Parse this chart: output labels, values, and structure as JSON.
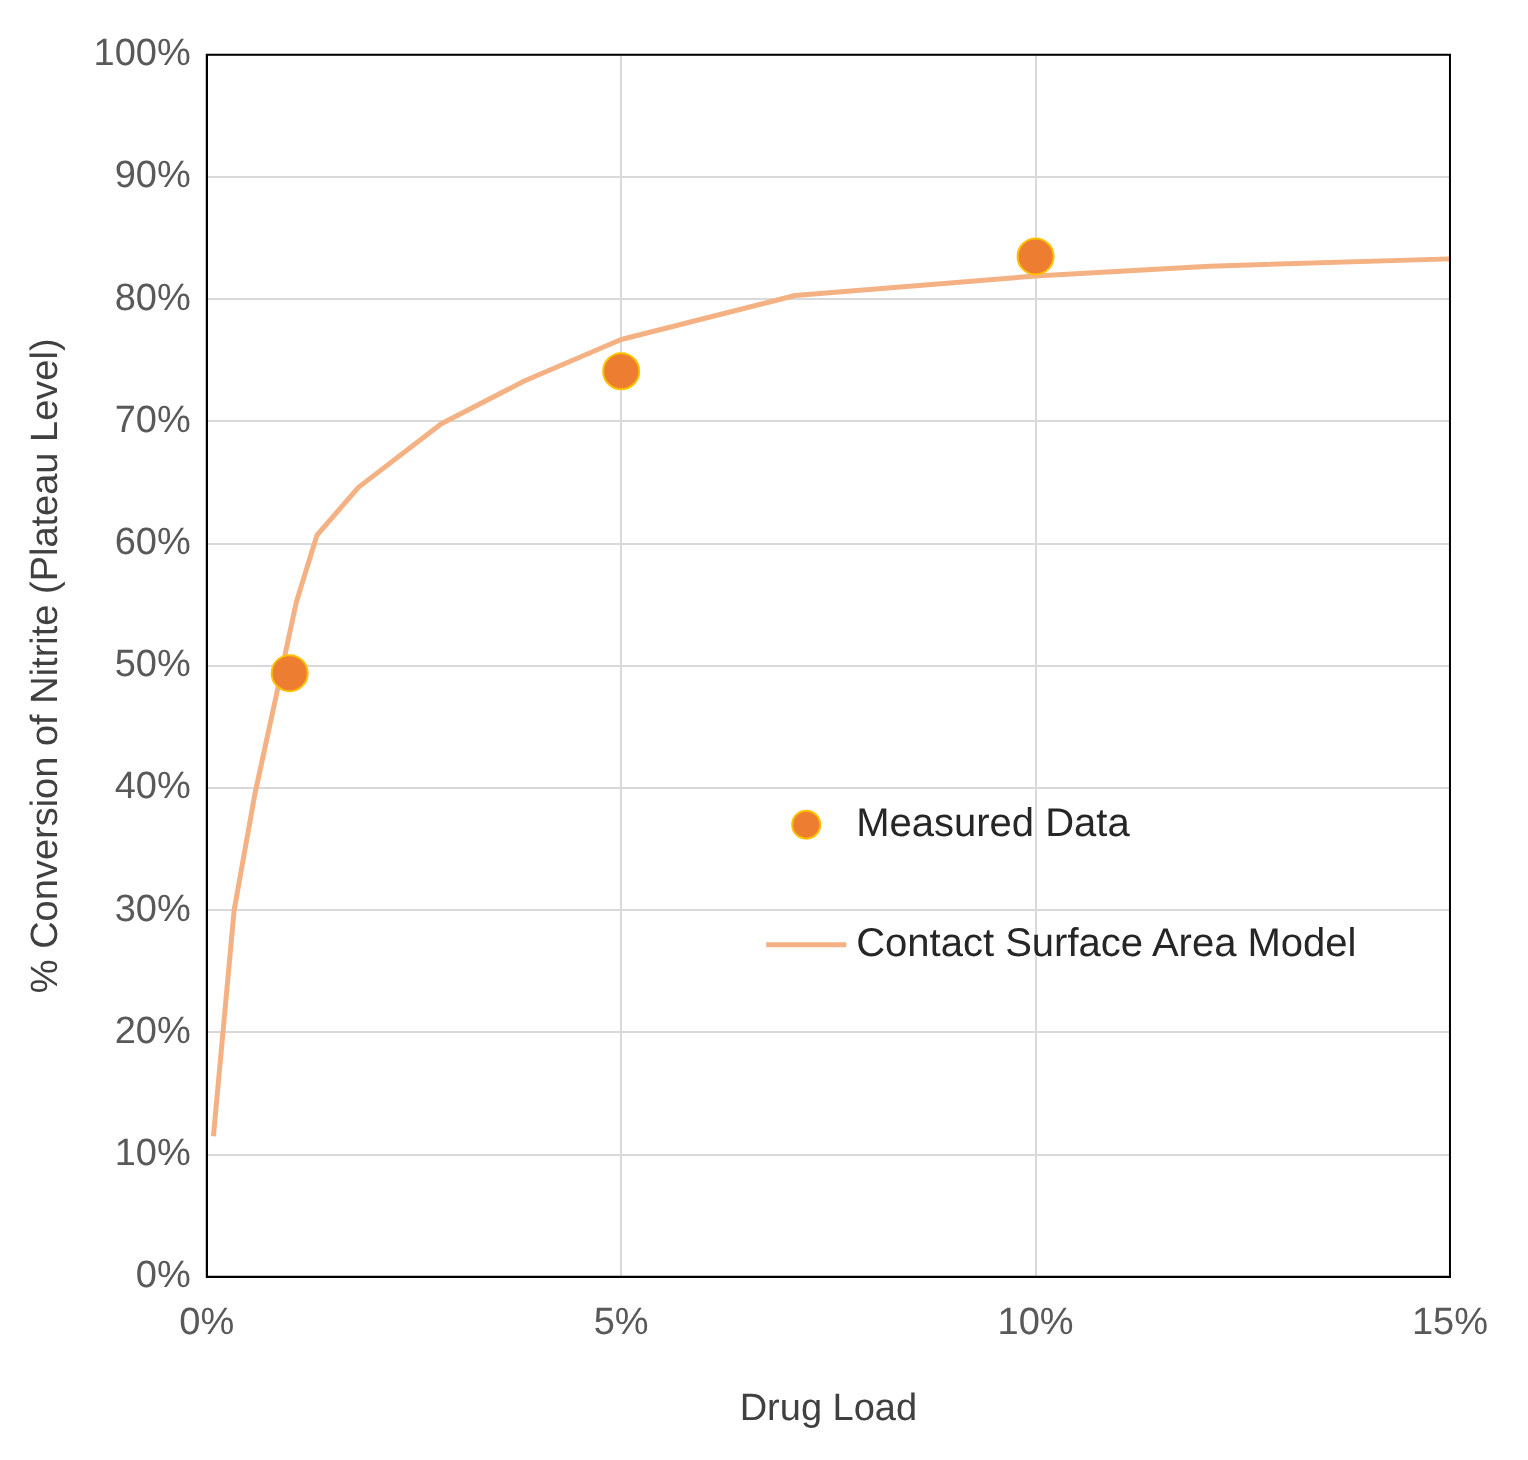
{
  "chart_data": {
    "type": "scatter",
    "xlabel": "Drug Load",
    "ylabel": "% Conversion of Nitrite (Plateau Level)",
    "xlim": [
      0,
      15
    ],
    "xticks": [
      {
        "value": 0,
        "label": "0%"
      },
      {
        "value": 5,
        "label": "5%"
      },
      {
        "value": 10,
        "label": "10%"
      },
      {
        "value": 15,
        "label": "15%"
      }
    ],
    "ylim": [
      0,
      100
    ],
    "yticks": [
      {
        "value": 0,
        "label": "0%"
      },
      {
        "value": 10,
        "label": "10%"
      },
      {
        "value": 20,
        "label": "20%"
      },
      {
        "value": 30,
        "label": "30%"
      },
      {
        "value": 40,
        "label": "40%"
      },
      {
        "value": 50,
        "label": "50%"
      },
      {
        "value": 60,
        "label": "60%"
      },
      {
        "value": 70,
        "label": "70%"
      },
      {
        "value": 80,
        "label": "80%"
      },
      {
        "value": 90,
        "label": "90%"
      },
      {
        "value": 100,
        "label": "100%"
      }
    ],
    "grid": true,
    "legend": "right",
    "series": [
      {
        "name": "Measured Data",
        "marker": "circle",
        "color": "#ed7d31",
        "x": [
          1,
          5,
          10
        ],
        "values": [
          49.4,
          74.1,
          83.5
        ]
      },
      {
        "name": "Contact Surface Area Model",
        "type": "line",
        "marker": "none",
        "line_style": "solid",
        "color": "#f4b183",
        "x": [
          0.08,
          0.33,
          0.58,
          0.83,
          1.08,
          1.33,
          1.83,
          2.83,
          3.83,
          5,
          7.1,
          10,
          12.1,
          15
        ],
        "values": [
          11.5,
          30,
          39.5,
          47.3,
          55.2,
          60.7,
          64.6,
          69.8,
          73.3,
          76.7,
          80.3,
          81.9,
          82.7,
          83.3
        ]
      }
    ]
  }
}
